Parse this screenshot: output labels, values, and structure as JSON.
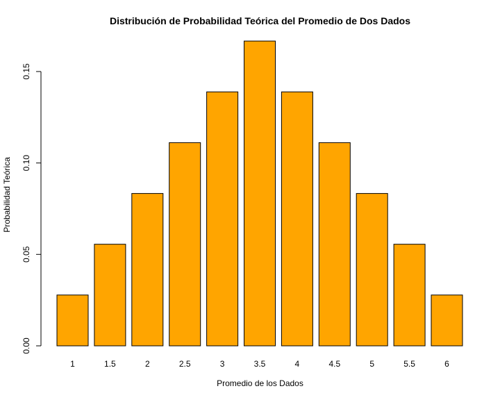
{
  "chart_data": {
    "type": "bar",
    "title": "Distribución de Probabilidad Teórica del Promedio de Dos Dados",
    "xlabel": "Promedio de los Dados",
    "ylabel": "Probabilidad Teórica",
    "categories": [
      "1",
      "1.5",
      "2",
      "2.5",
      "3",
      "3.5",
      "4",
      "4.5",
      "5",
      "5.5",
      "6"
    ],
    "values": [
      0.02778,
      0.05556,
      0.08333,
      0.11111,
      0.13889,
      0.16667,
      0.13889,
      0.11111,
      0.08333,
      0.05556,
      0.02778
    ],
    "yticks": [
      "0.00",
      "0.05",
      "0.10",
      "0.15"
    ],
    "ylim": [
      0,
      0.17
    ],
    "bar_color": "#FFA500",
    "grid": false
  }
}
